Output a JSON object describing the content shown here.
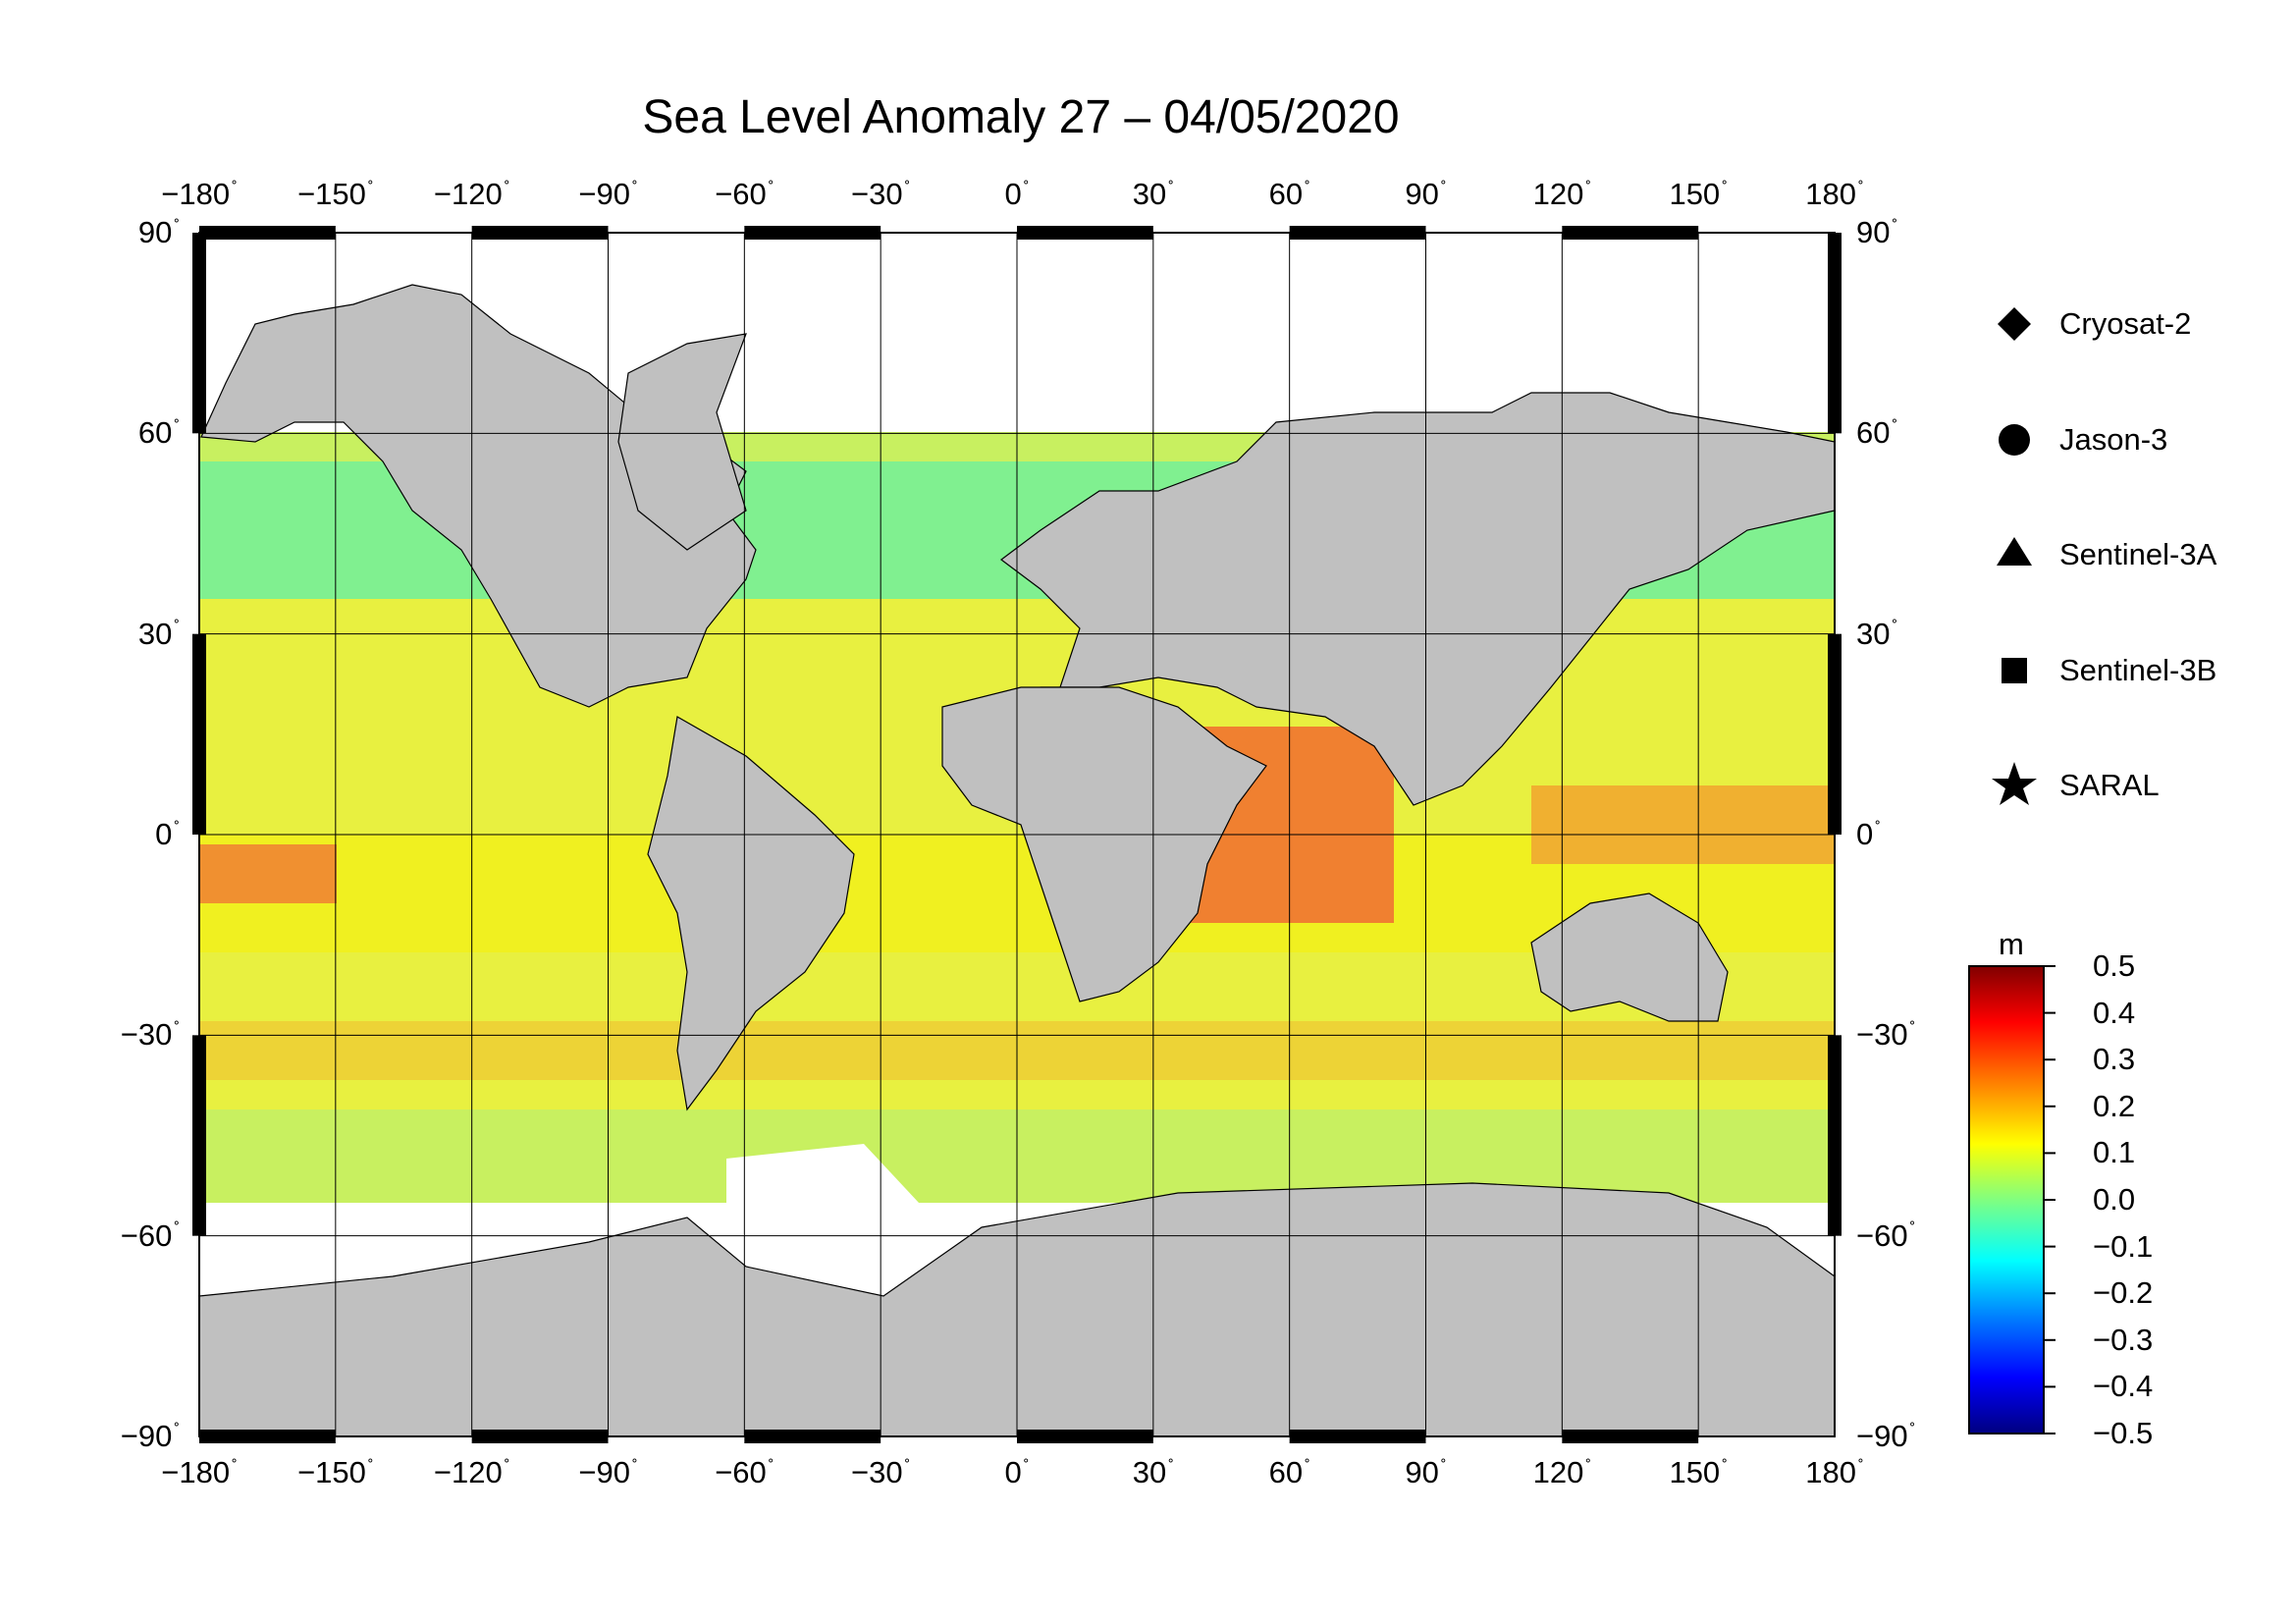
{
  "title": "Sea Level Anomaly 27 – 04/05/2020",
  "map": {
    "projection": "equirectangular",
    "lon_range": [
      -180,
      180
    ],
    "lat_range": [
      -90,
      90
    ],
    "lon_ticks": [
      "−180",
      "−150",
      "−120",
      "−90",
      "−60",
      "−30",
      "0",
      "30",
      "60",
      "90",
      "120",
      "150",
      "180"
    ],
    "lat_ticks": [
      "90",
      "60",
      "30",
      "0",
      "−30",
      "−60",
      "−90"
    ],
    "degree_symbol": "˚",
    "land_color": "#c0c0c0",
    "ice_color": "#ffffff"
  },
  "legend": {
    "items": [
      {
        "label": "Cryosat-2",
        "icon": "diamond-icon"
      },
      {
        "label": "Jason-3",
        "icon": "circle-icon"
      },
      {
        "label": "Sentinel-3A",
        "icon": "triangle-icon"
      },
      {
        "label": "Sentinel-3B",
        "icon": "square-icon"
      },
      {
        "label": "SARAL",
        "icon": "star-icon"
      }
    ]
  },
  "colorbar": {
    "unit": "m",
    "min": -0.5,
    "max": 0.5,
    "ticks": [
      "0.5",
      "0.4",
      "0.3",
      "0.2",
      "0.1",
      "0.0",
      "−0.1",
      "−0.2",
      "−0.3",
      "−0.4",
      "−0.5"
    ],
    "colors": [
      "#000080",
      "#0000ff",
      "#0080ff",
      "#00ffff",
      "#80ff80",
      "#ffff00",
      "#ff8000",
      "#ff0000",
      "#800000"
    ]
  }
}
